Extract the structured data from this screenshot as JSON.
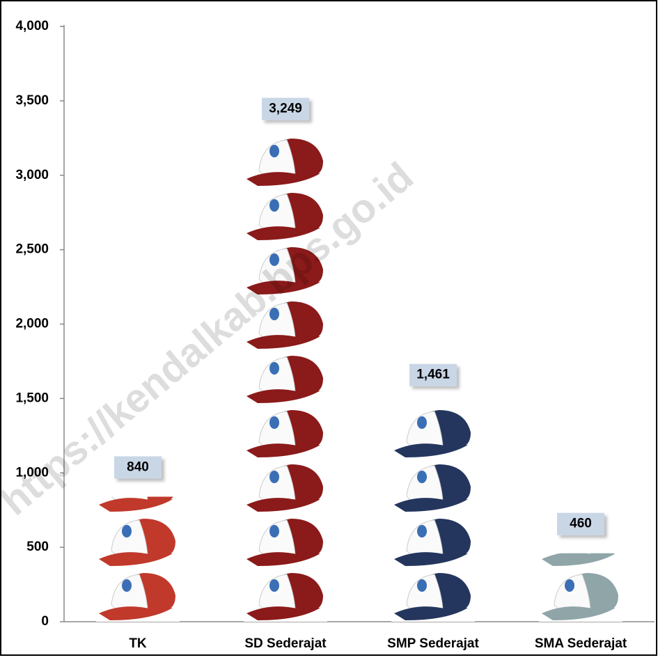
{
  "chart_data": {
    "type": "bar",
    "watermark": "https://kendalkab.bps.go.id",
    "categories": [
      "TK",
      "SD Sederajat",
      "SMP Sederajat",
      "SMA Sederajat"
    ],
    "values": [
      840,
      3249,
      1461,
      460
    ],
    "value_labels": [
      "840",
      "3,249",
      "1,461",
      "460"
    ],
    "colors": [
      "#c0392b",
      "#8b1a1a",
      "#24365e",
      "#8fa5a8"
    ],
    "ylim": [
      0,
      4000
    ],
    "yticks": [
      0,
      500,
      {
        "value": 1000,
        "label": "1,000"
      },
      {
        "value": 1500,
        "label": "1,500"
      },
      {
        "value": 2000,
        "label": "2,000"
      },
      {
        "value": 2500,
        "label": "2,500"
      },
      {
        "value": 3000,
        "label": "3,000"
      },
      {
        "value": 3500,
        "label": "3,500"
      },
      {
        "value": 4000,
        "label": "4,000"
      }
    ],
    "grid": false
  }
}
